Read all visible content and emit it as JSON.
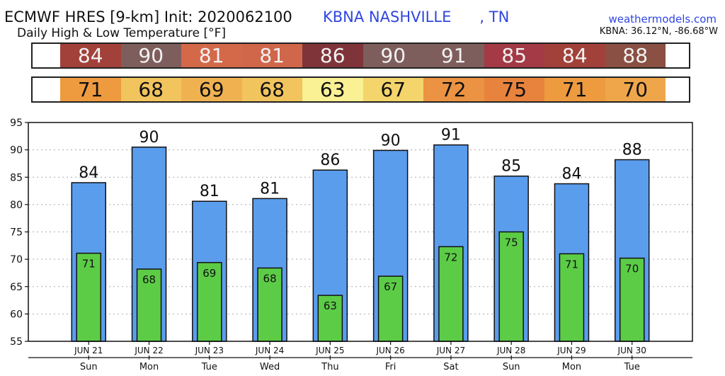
{
  "header": {
    "title": "ECMWF HRES [9-km] Init: 2020062100",
    "subtitle": "Daily High & Low Temperature [°F]",
    "station": "KBNA NASHVILLE      , TN",
    "site": "weathermodels.com",
    "coords": "KBNA: 36.12°N, -86.68°W"
  },
  "colors": {
    "high_bar": "#5b9ded",
    "low_bar": "#5ccc47",
    "high_cells": [
      "#a2413a",
      "#7e5e5c",
      "#d4694a",
      "#d0664a",
      "#7e3439",
      "#7e5e5c",
      "#7e5e5c",
      "#a33a46",
      "#a2413a",
      "#895043"
    ],
    "low_cells": [
      "#ee9b40",
      "#f1c45e",
      "#f0b251",
      "#f1c45e",
      "#faf094",
      "#f4d56c",
      "#eb9343",
      "#e8833e",
      "#ee9b40",
      "#efa64a"
    ]
  },
  "chart_data": {
    "type": "bar",
    "title": "Daily High & Low Temperature [°F]",
    "categories": [
      "JUN 21",
      "JUN 22",
      "JUN 23",
      "JUN 24",
      "JUN 25",
      "JUN 26",
      "JUN 27",
      "JUN 28",
      "JUN 29",
      "JUN 30"
    ],
    "weekdays": [
      "Sun",
      "Mon",
      "Tue",
      "Wed",
      "Thu",
      "Fri",
      "Sat",
      "Sun",
      "Mon",
      "Tue"
    ],
    "series": [
      {
        "values": [
          84,
          90,
          81,
          81,
          86,
          90,
          91,
          85,
          84,
          88
        ],
        "bar_tops": [
          84.0,
          90.5,
          80.6,
          81.1,
          86.3,
          89.9,
          90.9,
          85.2,
          83.8,
          88.2
        ]
      },
      {
        "values": [
          71,
          68,
          69,
          68,
          63,
          67,
          72,
          75,
          71,
          70
        ],
        "bar_tops": [
          71.1,
          68.2,
          69.4,
          68.4,
          63.4,
          66.9,
          72.3,
          75.0,
          71.0,
          70.2
        ]
      }
    ],
    "ylim": [
      55,
      95
    ],
    "yticks": [
      55,
      60,
      65,
      70,
      75,
      80,
      85,
      90,
      95
    ],
    "grid": true
  }
}
